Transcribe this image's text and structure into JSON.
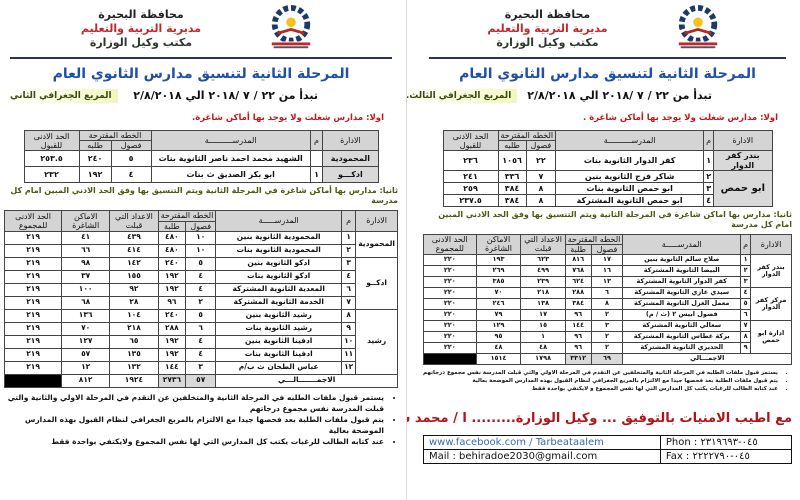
{
  "left": {
    "header": {
      "governorate": "محافظة البحيرة",
      "directorate": "مديرية التربية والتعليم",
      "office": "مكتب وكيل الوزارة"
    },
    "title": "المرحلة الثانية لتنسيق مدارس الثانوي العام",
    "date": "تبدأ من ٢٢ / ٧ /٢٠١٨ الي ٢/٨/٢٠١٨",
    "quadrant": "المربع الجغرافي الثاني",
    "section1": "اولا: مدارس شغلت ولا يوجد بها أماكن شاغرة.",
    "t1_headers": {
      "admin": "الادارة",
      "num": "م",
      "school": "المدرســــــــــة",
      "plan": "الخطه المقترحة",
      "classes": "فصول",
      "students": "طلبه",
      "min": "الحد الادنى للقبول"
    },
    "t1_rows": [
      [
        "المحمودية",
        "",
        "الشهيد محمد احمد ناصر الثانوية بنات",
        "٥",
        "٢٤٠",
        "٢٥٣.٥"
      ],
      [
        "ادكـــو",
        "١",
        "ابو بكر الصديق ث بنات",
        "٤",
        "١٩٢",
        "٢٣٢"
      ]
    ],
    "section2": "ثانيا: مدارس بها أماكن شاغرة في المرحلة الثانية ويتم التنسيق بها وفق الحد الادني المبين امام كل مدرسة",
    "t2_headers": {
      "admin": "الادارة",
      "num": "م",
      "school": "المدرســـــة",
      "plan": "الخطه المقترحة",
      "classes": "فصول",
      "students": "طلبة",
      "accepted": "الاعداد التي قبلت",
      "vacant": "الاماكن الشاغرة",
      "min": "الحد الادنى للمجموع"
    },
    "t2_groups": [
      {
        "admin": "المحمودية",
        "span": 2
      },
      {
        "admin": "ادكــو",
        "span": 4
      },
      {
        "admin": "رشيد",
        "span": 5
      }
    ],
    "t2_rows": [
      [
        "١",
        "المحمودية الثانوية بنين",
        "١٠",
        "٤٨٠",
        "٤٣٩",
        "٤١",
        "٢١٩"
      ],
      [
        "٢",
        "المحمودية الثانوية بنات",
        "١٠",
        "٤٨٠",
        "٤١٤",
        "٦٦",
        "٢١٩"
      ],
      [
        "٣",
        "ادكو الثانوية بنين",
        "٥",
        "٢٤٠",
        "١٤٢",
        "٩٨",
        "٢١٩"
      ],
      [
        "٤",
        "ادكو الثانوية بنات",
        "٤",
        "١٩٢",
        "١٥٥",
        "٣٧",
        "٢١٩"
      ],
      [
        "٦",
        "المعدية الثانوية المشتركة",
        "٤",
        "١٩٢",
        "٩٢",
        "١٠٠",
        "٢١٩"
      ],
      [
        "٧",
        "الخدمة الثانوية المشتركة",
        "٢",
        "٩٦",
        "٢٨",
        "٦٨",
        "٢١٩"
      ],
      [
        "٨",
        "رشيد الثانوية بنين",
        "٥",
        "٢٤٠",
        "١٠٤",
        "١٣٦",
        "٢١٩"
      ],
      [
        "٩",
        "رشيد الثانوية بنات",
        "٦",
        "٢٨٨",
        "٢١٨",
        "٧٠",
        "٢١٩"
      ],
      [
        "١٠",
        "ادفينا الثانوية بنين",
        "٤",
        "١٩٢",
        "٦٥",
        "١٢٧",
        "٢١٩"
      ],
      [
        "١١",
        "ادفينا الثانوية بنات",
        "٤",
        "١٩٢",
        "١٣٥",
        "٥٧",
        "٢١٩"
      ],
      [
        "١٢",
        "عباس الطحان ث ب/م",
        "٣",
        "١٤٤",
        "١٣٢",
        "١٢",
        "٢١٩"
      ]
    ],
    "t2_total": {
      "label": "الاجمـــــــالـــي",
      "classes": "٥٧",
      "students": "٢٧٣٦",
      "accepted": "١٩٢٤",
      "vacant": "٨١٢"
    },
    "notes": [
      "يستمر قبول ملفات الطلبه في المرحلة الثانية والمتخلفين عن التقدم في المرحلة الاولي والثانية والتي قبلت المدرسة نفس مجموع درجاتهم",
      "يتم قبول ملفات الطلبة بعد فحصها جيدا مع الالتزام بالمربع الجغرافي لنظام القبول بهذه المدارس الموضحة بعالية",
      "عند كتابه الطالب للرغبات يكتب كل المدارس التي لها نفس المجموع ولايكتفي بواحدة فقط"
    ]
  },
  "right": {
    "header": {
      "governorate": "محافظة البحيرة",
      "directorate": "مديرية التربية والتعليم",
      "office": "مكتب وكيل الوزارة"
    },
    "title": "المرحلة الثانية لتنسيق مدارس الثانوي العام",
    "date": "تبدأ من ٢٢ / ٧ /٢٠١٨ الي ٢/٨/٢٠١٨",
    "quadrant": "المربع الجغرافي الثالث.",
    "section1": "اولا: مدارس شغلت ولا يوجد بها أماكن شاغرة .",
    "t1_headers": {
      "admin": "الادارة",
      "num": "م",
      "school": "المدرســــــــــة",
      "plan": "الخطه المقترحة",
      "classes": "فصول",
      "students": "طلبه",
      "min": "الحد الادنى للقبول"
    },
    "t1_rows": [
      [
        "بندر كفر الدوار",
        "١",
        "كفر الدوار الثانوية بنات",
        "٢٢",
        "١٠٥٦",
        "٢٣٦"
      ],
      [
        "ابو حمص",
        "٢",
        "شاكر فرج الثانوية بنين",
        "٧",
        "٣٣٦",
        "٢٤١"
      ],
      [
        "",
        "٣",
        "ابو حمص الثانوية بنات",
        "٨",
        "٣٨٤",
        "٢٥٩"
      ],
      [
        "",
        "٤",
        "ابو حمص الثانوية المشتركة",
        "٨",
        "٣٨٤",
        "٢٣٧.٥"
      ]
    ],
    "section2": "ثانيا: مدارس بها اماكن شاغرة في المرحلة الثانية ويتم التنسيق بها وفق الحد الادني المبين امام كل مدرسة",
    "t2_headers": {
      "admin": "الادارة",
      "num": "م",
      "school": "المدرســـــة",
      "plan": "الخطه المقترحة",
      "classes": "فصول",
      "students": "طلبة",
      "accepted": "الاعداد التي قبلت",
      "vacant": "الاماكن الشاغرة",
      "min": "الحد الادنى للمجموع"
    },
    "t2_groups": [
      {
        "admin": "بندر كفر الدوار",
        "span": 3
      },
      {
        "admin": "مركز كفر الدوار",
        "span": 3
      },
      {
        "admin": "ادارة ابو حمص",
        "span": 3
      }
    ],
    "t2_rows": [
      [
        "١",
        "صلاح سالم الثانوية بنين",
        "١٧",
        "٨١٦",
        "٦٢٣",
        "١٩٣",
        "٢٢٠"
      ],
      [
        "٢",
        "البيضا الثانوية المشتركة",
        "١٦",
        "٧٦٨",
        "٤٩٩",
        "٢٦٩",
        "٢٢٠"
      ],
      [
        "٣",
        "كفر الدوار الثانوية المشتركة",
        "١٣",
        "٦٢٤",
        "٢٣٩",
        "٣٨٥",
        "٢٢٠"
      ],
      [
        "٤",
        "سيدي غازي الثانوية المشتركة",
        "٦",
        "٢٨٨",
        "٢١٨",
        "٧٠",
        "٢٢٠"
      ],
      [
        "٥",
        "معمل الغزل الثانوية المشتركة",
        "٨",
        "٣٨٤",
        "١٣٨",
        "٢٤٦",
        "٢٢٠"
      ],
      [
        "٦",
        "فصول ابيس ٢ (ث / م)",
        "٢",
        "٩٦",
        "١٧",
        "٧٩",
        "٢٢٠"
      ],
      [
        "٧",
        "سعالي الثانوية المشتركة",
        "٣",
        "١٤٤",
        "١٥",
        "١٢٩",
        "٢٢٠"
      ],
      [
        "٨",
        "بركة غطاس الثانوية المشتركة",
        "٢",
        "٩٦",
        "١",
        "٩٥",
        "٢٢٠"
      ],
      [
        "٩",
        "الحديري الثانوية المشتركة",
        "٢",
        "٩٦",
        "٤٨",
        "٤٨",
        "٢٢٠"
      ]
    ],
    "t2_total": {
      "label": "الاجمـــالي",
      "classes": "٦٩",
      "students": "٣٣١٢",
      "accepted": "١٧٩٨",
      "vacant": "١٥١٤"
    },
    "notes": [
      "يستمر قبول ملفات الطلبه في المرحلة الثانية والمتخلفين عن التقدم في المرحلة الاولي والتي قبلت المدرسة نفس مجموع درجاتهم",
      "يتم قبول ملفات الطلبة بعد فحصها جيدا مع الالتزام بالمربع الجغرافي لنظام القبول بهذه المدارس الموضحة بعالية",
      "عند كتابه الطالب للرغبات يكتب كل المدارس التي لها نفس المجموع و لايكتفي بواحدة فقط"
    ],
    "signature": "مع اطيب الامنيات بالتوفيق ... وكيل الوزارة......... ا / محمد سعد محمد",
    "footer": {
      "facebook": "www.facebook.com / Tarbeataalem",
      "mail": "Mail  : behiradoe2030@gmail.com",
      "phone": "Phon : ٠٤٥-٢٣١٩٦٩٣",
      "fax": "Fax     : ٠٤٥-٢٢٢٢٧٩٠"
    }
  },
  "colors": {
    "title_blue": "#1f4fa8",
    "red": "#c0181d",
    "green_text": "#4a5a10",
    "rule": "#2b3550",
    "header_gray": "#d4d4d4"
  }
}
